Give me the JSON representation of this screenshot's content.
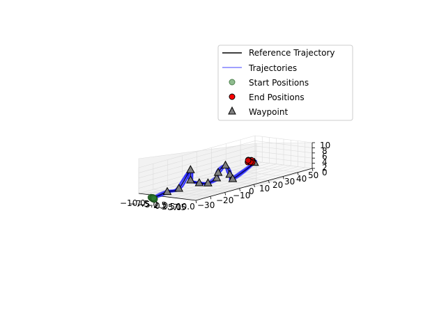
{
  "chart_data": {
    "type": "line",
    "projection": "3d",
    "title": "",
    "xlabel": "",
    "ylabel": "",
    "zlabel": "",
    "xlim": [
      -10.0,
      10.0
    ],
    "ylim": [
      -30,
      50
    ],
    "zlim": [
      0,
      10
    ],
    "x_ticks": [
      "−10.0",
      "−7.5",
      "−5.0",
      "−2.5",
      "0.0",
      "2.5",
      "5.0",
      "7.5",
      "10.0"
    ],
    "y_ticks": [
      "−30",
      "−20",
      "−10",
      "0",
      "10",
      "20",
      "30",
      "40",
      "50"
    ],
    "z_ticks": [
      "0",
      "2",
      "4",
      "6",
      "8",
      "10"
    ],
    "grid": true,
    "legend_position": "upper-right",
    "legend": [
      {
        "label": "Reference Trajectory",
        "kind": "line",
        "color": "#000000"
      },
      {
        "label": "Trajectories",
        "kind": "line",
        "color": "#8080ff"
      },
      {
        "label": "Start Positions",
        "kind": "circle",
        "color": "#8fbc8f"
      },
      {
        "label": "End Positions",
        "kind": "circle",
        "color": "#ff0000"
      },
      {
        "label": "Waypoint",
        "kind": "triangle",
        "color": "#808080"
      }
    ],
    "waypoints": [
      {
        "x": 0,
        "y": -30,
        "z": 2
      },
      {
        "x": 0,
        "y": -22,
        "z": 2
      },
      {
        "x": 0,
        "y": -14,
        "z": 8
      },
      {
        "x": 0,
        "y": -14,
        "z": 4
      },
      {
        "x": 0,
        "y": -8,
        "z": 2
      },
      {
        "x": 0,
        "y": -2,
        "z": 1
      },
      {
        "x": 0,
        "y": 4,
        "z": 2
      },
      {
        "x": 0,
        "y": 5,
        "z": 4
      },
      {
        "x": 0,
        "y": 10,
        "z": 6
      },
      {
        "x": 0,
        "y": 13,
        "z": 2
      },
      {
        "x": 0,
        "y": 15,
        "z": 0
      },
      {
        "x": 0,
        "y": 30,
        "z": 4
      }
    ],
    "start_position": {
      "x": 0,
      "y": -40,
      "z": 1
    },
    "end_position": {
      "x": 0,
      "y": 27,
      "z": 5
    },
    "trajectory_count": 10,
    "colors": {
      "reference": "#000000",
      "trajectory": "#0000ff",
      "start": "#2e7d32",
      "end": "#d50000",
      "waypoint": "#808080"
    }
  }
}
